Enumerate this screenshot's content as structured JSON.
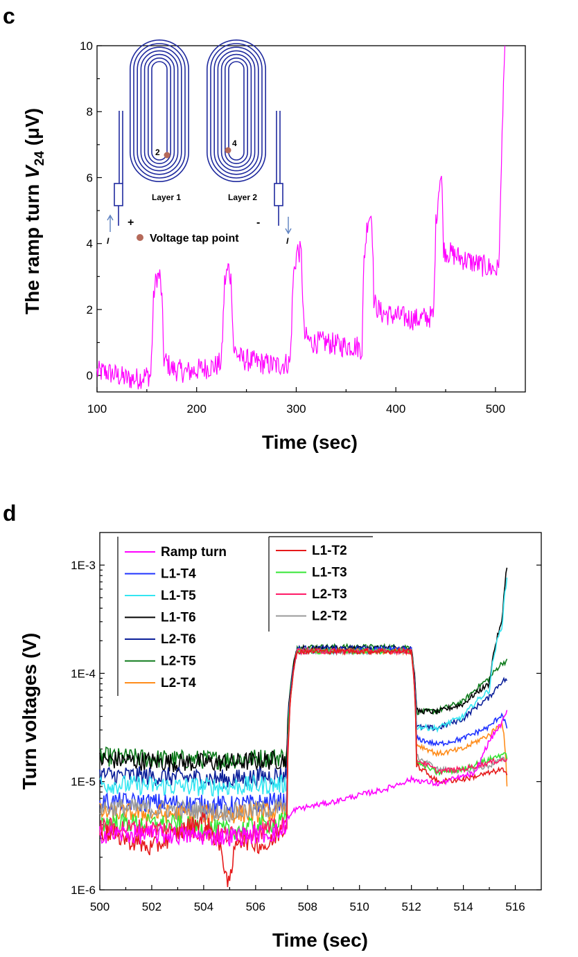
{
  "chart_data": [
    {
      "panel_label": "c",
      "type": "line",
      "xlabel": "Time (sec)",
      "ylabel_prefix": "The ramp turn ",
      "ylabel_var": "V",
      "ylabel_sub": "24",
      "ylabel_unit": " (μV)",
      "xlim": [
        100,
        530
      ],
      "ylim": [
        -0.5,
        10
      ],
      "xticks": [
        "100",
        "200",
        "300",
        "400",
        "500"
      ],
      "yticks": [
        "0",
        "2",
        "4",
        "6",
        "8",
        "10"
      ],
      "color": "#ff00ff",
      "series": [
        {
          "values": [
            [
              100,
              0.1
            ],
            [
              110,
              0.1
            ],
            [
              120,
              0.0
            ],
            [
              130,
              -0.1
            ],
            [
              140,
              -0.1
            ],
            [
              150,
              0.0
            ],
            [
              154,
              0.0
            ],
            [
              157,
              2.5
            ],
            [
              160,
              3.0
            ],
            [
              163,
              3.0
            ],
            [
              165,
              2.4
            ],
            [
              167,
              0.5
            ],
            [
              175,
              0.2
            ],
            [
              190,
              0.1
            ],
            [
              205,
              0.2
            ],
            [
              220,
              0.3
            ],
            [
              225,
              0.4
            ],
            [
              228,
              2.8
            ],
            [
              232,
              3.3
            ],
            [
              235,
              2.8
            ],
            [
              237,
              0.8
            ],
            [
              245,
              0.5
            ],
            [
              260,
              0.4
            ],
            [
              280,
              0.3
            ],
            [
              294,
              0.4
            ],
            [
              297,
              3.0
            ],
            [
              301,
              3.8
            ],
            [
              305,
              3.7
            ],
            [
              308,
              1.2
            ],
            [
              315,
              1.0
            ],
            [
              330,
              1.0
            ],
            [
              345,
              0.9
            ],
            [
              360,
              0.9
            ],
            [
              366,
              0.8
            ],
            [
              368,
              3.5
            ],
            [
              372,
              4.8
            ],
            [
              376,
              4.9
            ],
            [
              378,
              2.2
            ],
            [
              385,
              1.9
            ],
            [
              400,
              1.8
            ],
            [
              420,
              1.7
            ],
            [
              438,
              1.8
            ],
            [
              440,
              4.5
            ],
            [
              444,
              6.0
            ],
            [
              446,
              6.0
            ],
            [
              448,
              3.8
            ],
            [
              455,
              3.7
            ],
            [
              470,
              3.5
            ],
            [
              490,
              3.3
            ],
            [
              503,
              3.2
            ],
            [
              505,
              5.0
            ],
            [
              508,
              9.0
            ],
            [
              510,
              10.0
            ]
          ]
        }
      ],
      "inset": {
        "layer1_label": "Layer 1",
        "layer2_label": "Layer 2",
        "point2_label": "2",
        "point4_label": "4",
        "plus_label": "+",
        "minus_label": "-",
        "current_left_label": "I",
        "current_right_label": "I",
        "legend_label": "Voltage tap point",
        "coil_color": "#1f2a9e",
        "tap_color": "#b56a5a"
      }
    },
    {
      "panel_label": "d",
      "type": "line",
      "xlabel": "Time (sec)",
      "ylabel": "Turn voltages (V)",
      "xlim": [
        500,
        517
      ],
      "ylim": [
        1e-06,
        0.002
      ],
      "yscale": "log",
      "xticks": [
        "500",
        "502",
        "504",
        "506",
        "508",
        "510",
        "512",
        "514",
        "516"
      ],
      "yticks": [
        "1E-6",
        "1E-5",
        "1E-4",
        "1E-3"
      ],
      "legend_col1": [
        "Ramp turn",
        "L1-T4",
        "L1-T5",
        "L1-T6",
        "L2-T6",
        "L2-T5",
        "L2-T4"
      ],
      "legend_col2": [
        "L1-T2",
        "L1-T3",
        "L2-T3",
        "L2-T2"
      ],
      "series": [
        {
          "name": "Ramp turn",
          "color": "#ff00ff",
          "values": [
            [
              500,
              3.3e-06
            ],
            [
              503,
              3.2e-06
            ],
            [
              505,
              3.1e-06
            ],
            [
              507,
              3.4e-06
            ],
            [
              507.5,
              5.5e-06
            ],
            [
              509,
              6.5e-06
            ],
            [
              511,
              8.5e-06
            ],
            [
              512,
              1.05e-05
            ],
            [
              513,
              9.5e-06
            ],
            [
              514.5,
              1.2e-05
            ],
            [
              515.5,
              3.5e-05
            ],
            [
              515.7,
              4.5e-05
            ]
          ]
        },
        {
          "name": "L1-T4",
          "color": "#1f33ff",
          "values": [
            [
              500,
              6.5e-06
            ],
            [
              503,
              6.3e-06
            ],
            [
              505,
              6e-06
            ],
            [
              507.2,
              6.6e-06
            ],
            [
              507.6,
              0.00016
            ],
            [
              512,
              0.000165
            ],
            [
              512.2,
              2.5e-05
            ],
            [
              513,
              2.2e-05
            ],
            [
              514,
              2.5e-05
            ],
            [
              515,
              3.2e-05
            ],
            [
              515.5,
              4.2e-05
            ],
            [
              515.7,
              3e-05
            ]
          ]
        },
        {
          "name": "L1-T5",
          "color": "#33e6f2",
          "values": [
            [
              500,
              9.5e-06
            ],
            [
              503,
              9e-06
            ],
            [
              505,
              9e-06
            ],
            [
              507.2,
              9.5e-06
            ],
            [
              507.6,
              0.00016
            ],
            [
              512,
              0.00016
            ],
            [
              512.2,
              3.2e-05
            ],
            [
              513,
              3.1e-05
            ],
            [
              514,
              4e-05
            ],
            [
              515,
              7e-05
            ],
            [
              515.5,
              0.00028
            ],
            [
              515.7,
              0.0008
            ]
          ]
        },
        {
          "name": "L1-T6",
          "color": "#000000",
          "values": [
            [
              500,
              1.6e-05
            ],
            [
              503,
              1.5e-05
            ],
            [
              505,
              1.5e-05
            ],
            [
              507.2,
              1.6e-05
            ],
            [
              507.6,
              0.00017
            ],
            [
              512,
              0.00017
            ],
            [
              512.2,
              4.5e-05
            ],
            [
              513,
              4.4e-05
            ],
            [
              514,
              5.2e-05
            ],
            [
              515,
              8e-05
            ],
            [
              515.5,
              0.0003
            ],
            [
              515.7,
              0.00105
            ]
          ]
        },
        {
          "name": "L2-T6",
          "color": "#0b1f99",
          "values": [
            [
              500,
              1.15e-05
            ],
            [
              503,
              1.1e-05
            ],
            [
              505,
              1.05e-05
            ],
            [
              507.2,
              1.15e-05
            ],
            [
              507.6,
              0.00017
            ],
            [
              512,
              0.00017
            ],
            [
              512.2,
              3.2e-05
            ],
            [
              513,
              3.1e-05
            ],
            [
              514,
              3.8e-05
            ],
            [
              515,
              6e-05
            ],
            [
              515.5,
              8.5e-05
            ],
            [
              515.7,
              8.8e-05
            ]
          ]
        },
        {
          "name": "L2-T5",
          "color": "#0c7a1a",
          "values": [
            [
              500,
              1.7e-05
            ],
            [
              503,
              1.6e-05
            ],
            [
              505,
              1.6e-05
            ],
            [
              507.2,
              1.7e-05
            ],
            [
              507.6,
              0.000175
            ],
            [
              512,
              0.000175
            ],
            [
              512.2,
              4.4e-05
            ],
            [
              513,
              4.5e-05
            ],
            [
              514,
              5.5e-05
            ],
            [
              515,
              9e-05
            ],
            [
              515.5,
              0.000125
            ],
            [
              515.7,
              0.00013
            ]
          ]
        },
        {
          "name": "L2-T4",
          "color": "#ff8c1a",
          "values": [
            [
              500,
              5.2e-06
            ],
            [
              503,
              5e-06
            ],
            [
              505,
              5e-06
            ],
            [
              507.2,
              5.3e-06
            ],
            [
              507.6,
              0.00016
            ],
            [
              512,
              0.00016
            ],
            [
              512.2,
              2.2e-05
            ],
            [
              513,
              1.8e-05
            ],
            [
              514,
              2e-05
            ],
            [
              515,
              2.7e-05
            ],
            [
              515.5,
              3.5e-05
            ],
            [
              515.7,
              6.3e-06
            ]
          ]
        },
        {
          "name": "L1-T2",
          "color": "#e6191a",
          "values": [
            [
              500,
              3.5e-06
            ],
            [
              502,
              2.4e-06
            ],
            [
              503,
              3.3e-06
            ],
            [
              504,
              4.5e-06
            ],
            [
              505,
              1e-06
            ],
            [
              505.3,
              3e-06
            ],
            [
              506.5,
              2.5e-06
            ],
            [
              507.2,
              4e-06
            ],
            [
              507.6,
              0.00016
            ],
            [
              512,
              0.00016
            ],
            [
              512.2,
              1.4e-05
            ],
            [
              513,
              1e-05
            ],
            [
              514,
              1.05e-05
            ],
            [
              515,
              1.2e-05
            ],
            [
              515.5,
              1.3e-05
            ],
            [
              515.7,
              1.1e-05
            ]
          ]
        },
        {
          "name": "L1-T3",
          "color": "#33e633",
          "values": [
            [
              500,
              4.2e-06
            ],
            [
              503,
              4e-06
            ],
            [
              505,
              3.5e-06
            ],
            [
              507.2,
              4.3e-06
            ],
            [
              507.6,
              0.00016
            ],
            [
              512,
              0.00016
            ],
            [
              512.2,
              1.5e-05
            ],
            [
              513,
              1.2e-05
            ],
            [
              514,
              1.3e-05
            ],
            [
              515,
              1.6e-05
            ],
            [
              515.5,
              1.8e-05
            ],
            [
              515.7,
              1.7e-05
            ]
          ]
        },
        {
          "name": "L2-T3",
          "color": "#ff1a66",
          "values": [
            [
              500,
              3.8e-06
            ],
            [
              503,
              3.6e-06
            ],
            [
              505,
              3.2e-06
            ],
            [
              507.2,
              3.9e-06
            ],
            [
              507.6,
              0.00016
            ],
            [
              512,
              0.00016
            ],
            [
              512.2,
              1.6e-05
            ],
            [
              513,
              1.25e-05
            ],
            [
              514,
              1.3e-05
            ],
            [
              515,
              1.5e-05
            ],
            [
              515.5,
              1.6e-05
            ],
            [
              515.7,
              1.55e-05
            ]
          ]
        },
        {
          "name": "L2-T2",
          "color": "#999999",
          "values": [
            [
              500,
              5.8e-06
            ],
            [
              503,
              5.5e-06
            ],
            [
              505,
              5.2e-06
            ],
            [
              507.2,
              5.8e-06
            ],
            [
              507.6,
              0.00016
            ],
            [
              512,
              0.00016
            ],
            [
              512.2,
              1.7e-05
            ],
            [
              513,
              1.3e-05
            ],
            [
              514,
              1.25e-05
            ],
            [
              515,
              1.4e-05
            ],
            [
              515.5,
              1.6e-05
            ],
            [
              515.7,
              1.6e-05
            ]
          ]
        }
      ]
    }
  ]
}
